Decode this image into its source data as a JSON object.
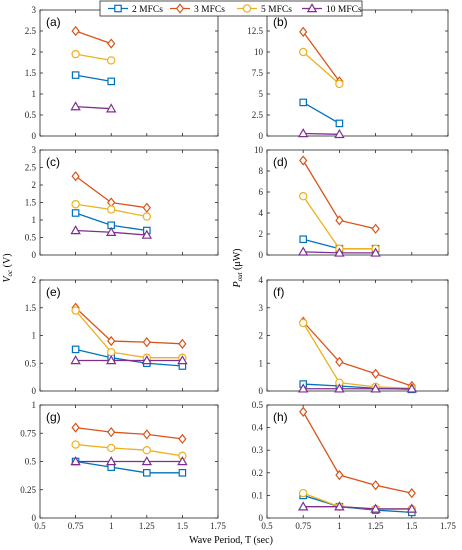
{
  "legend": [
    {
      "name": "2 MFCs",
      "color": "#0072BD",
      "marker": "square"
    },
    {
      "name": "3 MFCs",
      "color": "#D95319",
      "marker": "diamond"
    },
    {
      "name": "5 MFCs",
      "color": "#EDB120",
      "marker": "circle"
    },
    {
      "name": "10 MFCs",
      "color": "#7E2F8E",
      "marker": "triangle"
    }
  ],
  "xlabel": "Wave Period, T (sec)",
  "ylabel_left": {
    "main": "V",
    "sub": "oc",
    "unit": " (V)"
  },
  "ylabel_right": {
    "main": "P",
    "sub": "out",
    "unit": " (μW)"
  },
  "chart_data": [
    {
      "type": "line",
      "panel": "(a)",
      "xlim": [
        0.5,
        1.75
      ],
      "ylim": [
        0,
        3
      ],
      "yticks": [
        "0",
        "0.5",
        "1",
        "1.5",
        "2",
        "2.5",
        "3"
      ],
      "xticks": [],
      "series": [
        {
          "name": "2 MFCs",
          "x": [
            0.75,
            1.0
          ],
          "values": [
            1.45,
            1.3
          ]
        },
        {
          "name": "3 MFCs",
          "x": [
            0.75,
            1.0
          ],
          "values": [
            2.5,
            2.2
          ]
        },
        {
          "name": "5 MFCs",
          "x": [
            0.75,
            1.0
          ],
          "values": [
            1.95,
            1.8
          ]
        },
        {
          "name": "10 MFCs",
          "x": [
            0.75,
            1.0
          ],
          "values": [
            0.7,
            0.65
          ]
        }
      ]
    },
    {
      "type": "line",
      "panel": "(b)",
      "xlim": [
        0.5,
        1.75
      ],
      "ylim": [
        0,
        15
      ],
      "yticks": [
        "0",
        "2.5",
        "5",
        "7.5",
        "10",
        "12.5",
        "15"
      ],
      "xticks": [],
      "series": [
        {
          "name": "2 MFCs",
          "x": [
            0.75,
            1.0
          ],
          "values": [
            4.0,
            1.5
          ]
        },
        {
          "name": "3 MFCs",
          "x": [
            0.75,
            1.0
          ],
          "values": [
            12.4,
            6.5
          ]
        },
        {
          "name": "5 MFCs",
          "x": [
            0.75,
            1.0
          ],
          "values": [
            10.0,
            6.2
          ]
        },
        {
          "name": "10 MFCs",
          "x": [
            0.75,
            1.0
          ],
          "values": [
            0.3,
            0.2
          ]
        }
      ]
    },
    {
      "type": "line",
      "panel": "(c)",
      "xlim": [
        0.5,
        1.75
      ],
      "ylim": [
        0,
        3
      ],
      "yticks": [
        "0",
        "0.5",
        "1",
        "1.5",
        "2",
        "2.5",
        "3"
      ],
      "xticks": [],
      "series": [
        {
          "name": "2 MFCs",
          "x": [
            0.75,
            1.0,
            1.25
          ],
          "values": [
            1.2,
            0.85,
            0.7
          ]
        },
        {
          "name": "3 MFCs",
          "x": [
            0.75,
            1.0,
            1.25
          ],
          "values": [
            2.25,
            1.5,
            1.35
          ]
        },
        {
          "name": "5 MFCs",
          "x": [
            0.75,
            1.0,
            1.25
          ],
          "values": [
            1.45,
            1.3,
            1.1
          ]
        },
        {
          "name": "10 MFCs",
          "x": [
            0.75,
            1.0,
            1.25
          ],
          "values": [
            0.7,
            0.65,
            0.57
          ]
        }
      ]
    },
    {
      "type": "line",
      "panel": "(d)",
      "xlim": [
        0.5,
        1.75
      ],
      "ylim": [
        0,
        10
      ],
      "yticks": [
        "0",
        "2",
        "4",
        "6",
        "8",
        "10"
      ],
      "xticks": [],
      "series": [
        {
          "name": "2 MFCs",
          "x": [
            0.75,
            1.0,
            1.25
          ],
          "values": [
            1.5,
            0.6,
            0.6
          ]
        },
        {
          "name": "3 MFCs",
          "x": [
            0.75,
            1.0,
            1.25
          ],
          "values": [
            9.0,
            3.3,
            2.5
          ]
        },
        {
          "name": "5 MFCs",
          "x": [
            0.75,
            1.0,
            1.25
          ],
          "values": [
            5.6,
            0.6,
            0.6
          ]
        },
        {
          "name": "10 MFCs",
          "x": [
            0.75,
            1.0,
            1.25
          ],
          "values": [
            0.3,
            0.2,
            0.2
          ]
        }
      ]
    },
    {
      "type": "line",
      "panel": "(e)",
      "xlim": [
        0.5,
        1.75
      ],
      "ylim": [
        0,
        2
      ],
      "yticks": [
        "0",
        "0.5",
        "1",
        "1.5",
        "2"
      ],
      "xticks": [],
      "series": [
        {
          "name": "2 MFCs",
          "x": [
            0.75,
            1.0,
            1.25,
            1.5
          ],
          "values": [
            0.75,
            0.6,
            0.5,
            0.45
          ]
        },
        {
          "name": "3 MFCs",
          "x": [
            0.75,
            1.0,
            1.25,
            1.5
          ],
          "values": [
            1.5,
            0.9,
            0.88,
            0.85
          ]
        },
        {
          "name": "5 MFCs",
          "x": [
            0.75,
            1.0,
            1.25,
            1.5
          ],
          "values": [
            1.45,
            0.7,
            0.6,
            0.6
          ]
        },
        {
          "name": "10 MFCs",
          "x": [
            0.75,
            1.0,
            1.25,
            1.5
          ],
          "values": [
            0.55,
            0.55,
            0.55,
            0.55
          ]
        }
      ]
    },
    {
      "type": "line",
      "panel": "(f)",
      "xlim": [
        0.5,
        1.75
      ],
      "ylim": [
        0,
        4
      ],
      "yticks": [
        "0",
        "1",
        "2",
        "3",
        "4"
      ],
      "xticks": [],
      "series": [
        {
          "name": "2 MFCs",
          "x": [
            0.75,
            1.0,
            1.25,
            1.5
          ],
          "values": [
            0.25,
            0.18,
            0.1,
            0.06
          ]
        },
        {
          "name": "3 MFCs",
          "x": [
            0.75,
            1.0,
            1.25,
            1.5
          ],
          "values": [
            2.5,
            1.05,
            0.62,
            0.18
          ]
        },
        {
          "name": "5 MFCs",
          "x": [
            0.75,
            1.0,
            1.25,
            1.5
          ],
          "values": [
            2.45,
            0.3,
            0.15,
            0.1
          ]
        },
        {
          "name": "10 MFCs",
          "x": [
            0.75,
            1.0,
            1.25,
            1.5
          ],
          "values": [
            0.08,
            0.08,
            0.08,
            0.08
          ]
        }
      ]
    },
    {
      "type": "line",
      "panel": "(g)",
      "xlim": [
        0.5,
        1.75
      ],
      "ylim": [
        0,
        1
      ],
      "yticks": [
        "0",
        "0.25",
        "0.5",
        "0.75",
        "1"
      ],
      "xticks": [
        "0.5",
        "0.75",
        "1",
        "1.25",
        "1.5",
        "1.75"
      ],
      "series": [
        {
          "name": "2 MFCs",
          "x": [
            0.75,
            1.0,
            1.25,
            1.5
          ],
          "values": [
            0.5,
            0.45,
            0.4,
            0.4
          ]
        },
        {
          "name": "3 MFCs",
          "x": [
            0.75,
            1.0,
            1.25,
            1.5
          ],
          "values": [
            0.8,
            0.76,
            0.74,
            0.7
          ]
        },
        {
          "name": "5 MFCs",
          "x": [
            0.75,
            1.0,
            1.25,
            1.5
          ],
          "values": [
            0.65,
            0.62,
            0.6,
            0.55
          ]
        },
        {
          "name": "10 MFCs",
          "x": [
            0.75,
            1.0,
            1.25,
            1.5
          ],
          "values": [
            0.5,
            0.5,
            0.5,
            0.5
          ]
        }
      ]
    },
    {
      "type": "line",
      "panel": "(h)",
      "xlim": [
        0.5,
        1.75
      ],
      "ylim": [
        0,
        0.5
      ],
      "yticks": [
        "0",
        "0.1",
        "0.2",
        "0.3",
        "0.4",
        "0.5"
      ],
      "xticks": [
        "0.5",
        "0.75",
        "1",
        "1.25",
        "1.5",
        "1.75"
      ],
      "series": [
        {
          "name": "2 MFCs",
          "x": [
            0.75,
            1.0,
            1.25,
            1.5
          ],
          "values": [
            0.1,
            0.05,
            0.035,
            0.025
          ]
        },
        {
          "name": "3 MFCs",
          "x": [
            0.75,
            1.0,
            1.25,
            1.5
          ],
          "values": [
            0.47,
            0.19,
            0.145,
            0.11
          ]
        },
        {
          "name": "5 MFCs",
          "x": [
            0.75,
            1.0,
            1.25,
            1.5
          ],
          "values": [
            0.11,
            0.05,
            0.04,
            0.04
          ]
        },
        {
          "name": "10 MFCs",
          "x": [
            0.75,
            1.0,
            1.25,
            1.5
          ],
          "values": [
            0.05,
            0.05,
            0.04,
            0.04
          ]
        }
      ]
    }
  ]
}
